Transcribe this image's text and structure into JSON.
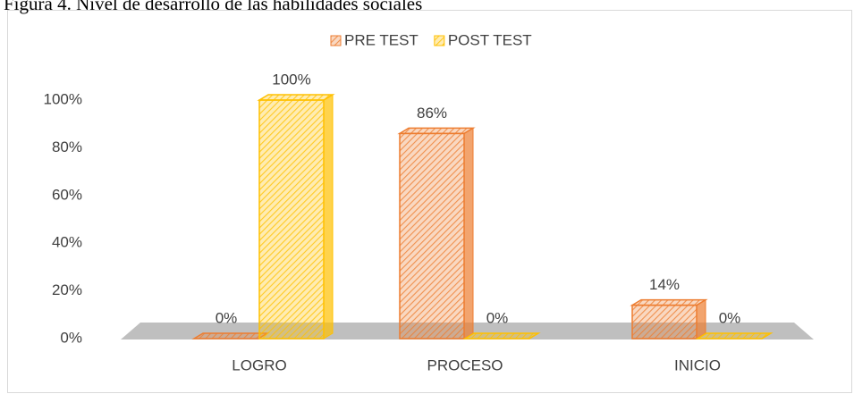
{
  "chart_data": {
    "type": "bar",
    "title": "Figura 4. Nivel de desarrollo de las habilidades sociales",
    "categories": [
      "LOGRO",
      "PROCESO",
      "INICIO"
    ],
    "series": [
      {
        "name": "PRE TEST",
        "color": "#ed7d31",
        "values": [
          0,
          86,
          14
        ],
        "value_labels": [
          "0%",
          "86%",
          "14%"
        ]
      },
      {
        "name": "POST TEST",
        "color": "#ffc000",
        "values": [
          100,
          0,
          0
        ],
        "value_labels": [
          "100%",
          "0%",
          "0%"
        ]
      }
    ],
    "ylim": [
      0,
      100
    ],
    "yticks": [
      {
        "value": 0,
        "label": "0%"
      },
      {
        "value": 20,
        "label": "20%"
      },
      {
        "value": 40,
        "label": "40%"
      },
      {
        "value": 60,
        "label": "60%"
      },
      {
        "value": 80,
        "label": "80%"
      },
      {
        "value": 100,
        "label": "100%"
      }
    ],
    "legend": "top"
  }
}
